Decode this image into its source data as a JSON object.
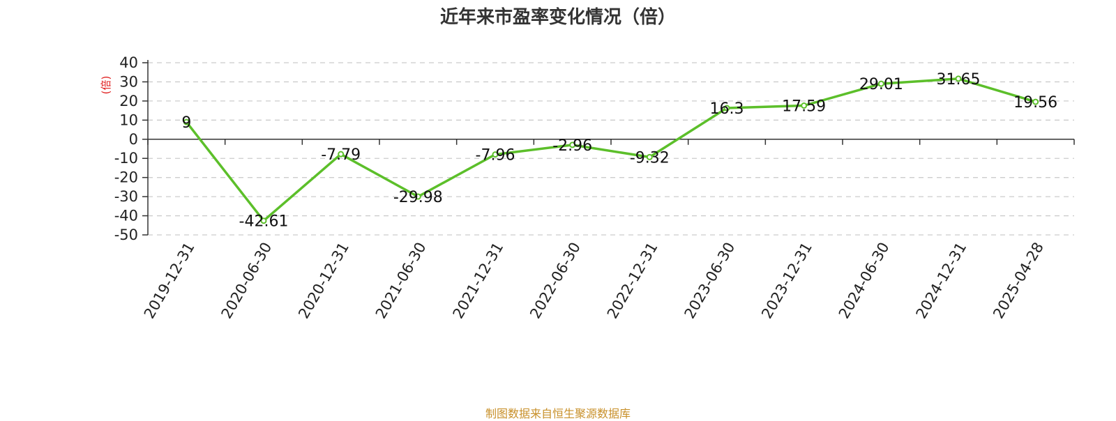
{
  "title": "近年来市盈率变化情况（倍）",
  "footer": "制图数据来自恒生聚源数据库",
  "colors": {
    "line": "#5cbf2a",
    "unit": "#e02020",
    "footer": "#c8902a",
    "grid": "#cccccc",
    "axis": "#333333"
  },
  "chart_data": {
    "type": "line",
    "title": "近年来市盈率变化情况（倍）",
    "ylabel": "(倍)",
    "xlabel": "",
    "ylim": [
      -50,
      40
    ],
    "yticks": [
      40,
      30,
      20,
      10,
      0,
      -10,
      -20,
      -30,
      -40,
      -50
    ],
    "grid": true,
    "categories": [
      "2019-12-31",
      "2020-06-30",
      "2020-12-31",
      "2021-06-30",
      "2021-12-31",
      "2022-06-30",
      "2022-12-31",
      "2023-06-30",
      "2023-12-31",
      "2024-06-30",
      "2024-12-31",
      "2025-04-28"
    ],
    "values": [
      9,
      -42.61,
      -7.79,
      -29.98,
      -7.96,
      -2.96,
      -9.32,
      16.3,
      17.59,
      29.01,
      31.65,
      19.56
    ],
    "value_labels": [
      "9",
      "-42.61",
      "-7.79",
      "-29.98",
      "-7.96",
      "-2.96",
      "-9.32",
      "16.3",
      "17.59",
      "29.01",
      "31.65",
      "19.56"
    ]
  }
}
